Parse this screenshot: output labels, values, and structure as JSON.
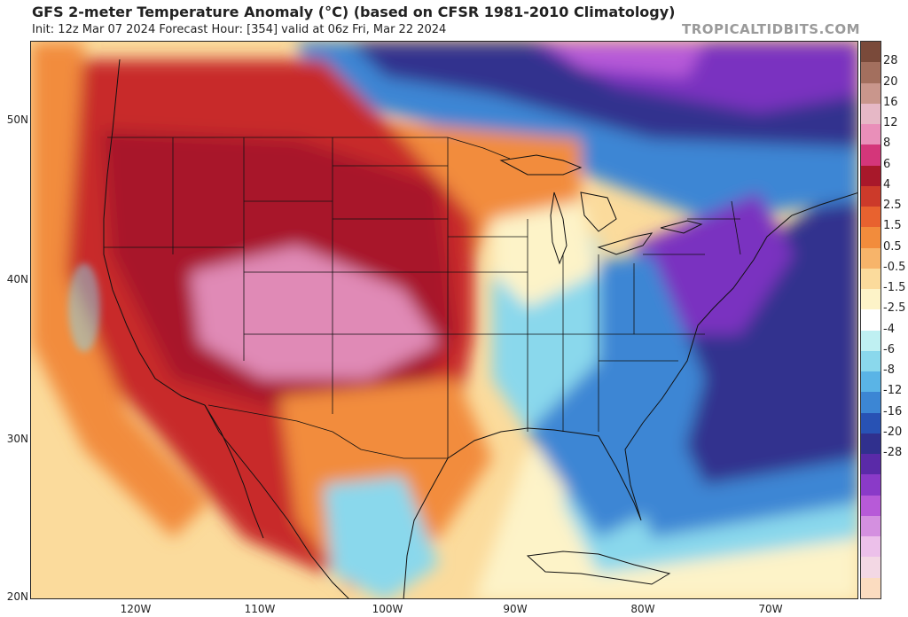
{
  "header": {
    "title": "GFS 2-meter Temperature Anomaly (°C) (based on CFSR 1981-2010 Climatology)",
    "subtitle": "Init: 12z Mar 07 2024   Forecast Hour: [354]   valid at 06z Fri, Mar 22 2024",
    "brand": "TROPICALTIDBITS.COM"
  },
  "axes": {
    "latitudes": [
      "50N",
      "40N",
      "30N",
      "20N"
    ],
    "longitudes": [
      "120W",
      "110W",
      "100W",
      "90W",
      "80W",
      "70W"
    ]
  },
  "colorbar": {
    "labels": [
      "28",
      "20",
      "16",
      "12",
      "8",
      "6",
      "4",
      "2.5",
      "1.5",
      "0.5",
      "-0.5",
      "-1.5",
      "-2.5",
      "-4",
      "-6",
      "-8",
      "-12",
      "-16",
      "-20",
      "-28"
    ],
    "colors": [
      "#7a4a3a",
      "#a36f5e",
      "#c9968c",
      "#e6b8c6",
      "#e98fb9",
      "#d4367a",
      "#a8182a",
      "#cc3a2a",
      "#e8622f",
      "#f28c3c",
      "#f7b46a",
      "#fbdb9c",
      "#fdf3c8",
      "#ffffff",
      "#bff0f2",
      "#8ad8ec",
      "#5ab4e6",
      "#3c86d4",
      "#2852b4",
      "#30308e",
      "#5a2aa8",
      "#8a3ac8",
      "#b75ad8",
      "#d490e0",
      "#ecc0ea",
      "#f3d8e4",
      "#fbdcc0"
    ]
  },
  "map": {
    "colors": {
      "ocean_warm": "#fbdb9c",
      "ocean_pale": "#fdf3c8",
      "hot_red": "#c82a2a",
      "deep_red": "#a8182a",
      "pink": "#e08ab6",
      "orange": "#f28c3c",
      "light_blue": "#8ad8ec",
      "mid_blue": "#3c86d4",
      "navy": "#30308e",
      "purple": "#7a32c0",
      "violet": "#b75ad8"
    }
  }
}
